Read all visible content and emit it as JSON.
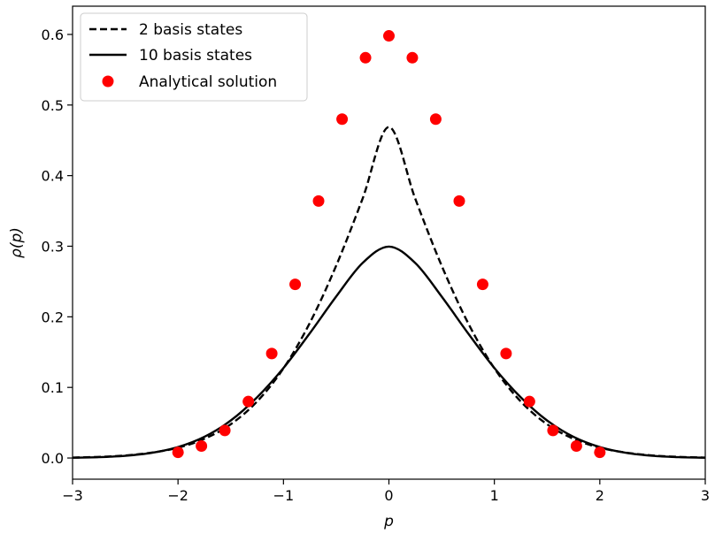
{
  "chart_data": {
    "type": "line",
    "title": "",
    "xlabel": "p",
    "ylabel": "ρ(p)",
    "xlim": [
      -3,
      3
    ],
    "ylim": [
      -0.03,
      0.64
    ],
    "x_ticks": [
      -3,
      -2,
      -1,
      0,
      1,
      2,
      3
    ],
    "x_tick_labels": [
      "−3",
      "−2",
      "−1",
      "0",
      "1",
      "2",
      "3"
    ],
    "y_ticks": [
      0.0,
      0.1,
      0.2,
      0.3,
      0.4,
      0.5,
      0.6
    ],
    "y_tick_labels": [
      "0.0",
      "0.1",
      "0.2",
      "0.3",
      "0.4",
      "0.5",
      "0.6"
    ],
    "grid": false,
    "legend_position": "top-left",
    "series": [
      {
        "name": "2 basis states",
        "style": "dashed",
        "color": "#000000",
        "x": [
          -3.0,
          -2.75,
          -2.5,
          -2.25,
          -2.0,
          -1.75,
          -1.5,
          -1.25,
          -1.0,
          -0.75,
          -0.5,
          -0.25,
          0.0,
          0.25,
          0.5,
          0.75,
          1.0,
          1.25,
          1.5,
          1.75,
          2.0,
          2.25,
          2.5,
          2.75,
          3.0
        ],
        "y": [
          0.0006,
          0.0016,
          0.0036,
          0.0076,
          0.0146,
          0.0272,
          0.0478,
          0.0801,
          0.127,
          0.1914,
          0.2725,
          0.3672,
          0.4688,
          0.3672,
          0.2725,
          0.1914,
          0.127,
          0.0801,
          0.0478,
          0.0272,
          0.0146,
          0.0076,
          0.0036,
          0.0016,
          0.0006
        ]
      },
      {
        "name": "10 basis states",
        "style": "solid",
        "color": "#000000",
        "x": [
          -3.0,
          -2.75,
          -2.5,
          -2.25,
          -2.0,
          -1.75,
          -1.5,
          -1.25,
          -1.0,
          -0.75,
          -0.5,
          -0.25,
          0.0,
          0.25,
          0.5,
          0.75,
          1.0,
          1.25,
          1.5,
          1.75,
          2.0,
          2.25,
          2.5,
          2.75,
          3.0
        ],
        "y": [
          0.0004,
          0.0012,
          0.0031,
          0.0073,
          0.0155,
          0.03,
          0.0531,
          0.086,
          0.1275,
          0.1768,
          0.2288,
          0.2762,
          0.2995,
          0.2762,
          0.2288,
          0.1768,
          0.1275,
          0.086,
          0.0531,
          0.03,
          0.0155,
          0.0073,
          0.0031,
          0.0012,
          0.0004
        ]
      },
      {
        "name": "Analytical solution",
        "style": "markers",
        "color": "#ff0000",
        "x": [
          -2.0,
          -1.778,
          -1.556,
          -1.333,
          -1.111,
          -0.889,
          -0.667,
          -0.444,
          -0.222,
          0.0,
          0.222,
          0.444,
          0.667,
          0.889,
          1.111,
          1.333,
          1.556,
          1.778,
          2.0
        ],
        "y": [
          0.008,
          0.017,
          0.039,
          0.08,
          0.148,
          0.246,
          0.364,
          0.48,
          0.567,
          0.598,
          0.567,
          0.48,
          0.364,
          0.246,
          0.148,
          0.08,
          0.039,
          0.017,
          0.008
        ]
      }
    ]
  }
}
